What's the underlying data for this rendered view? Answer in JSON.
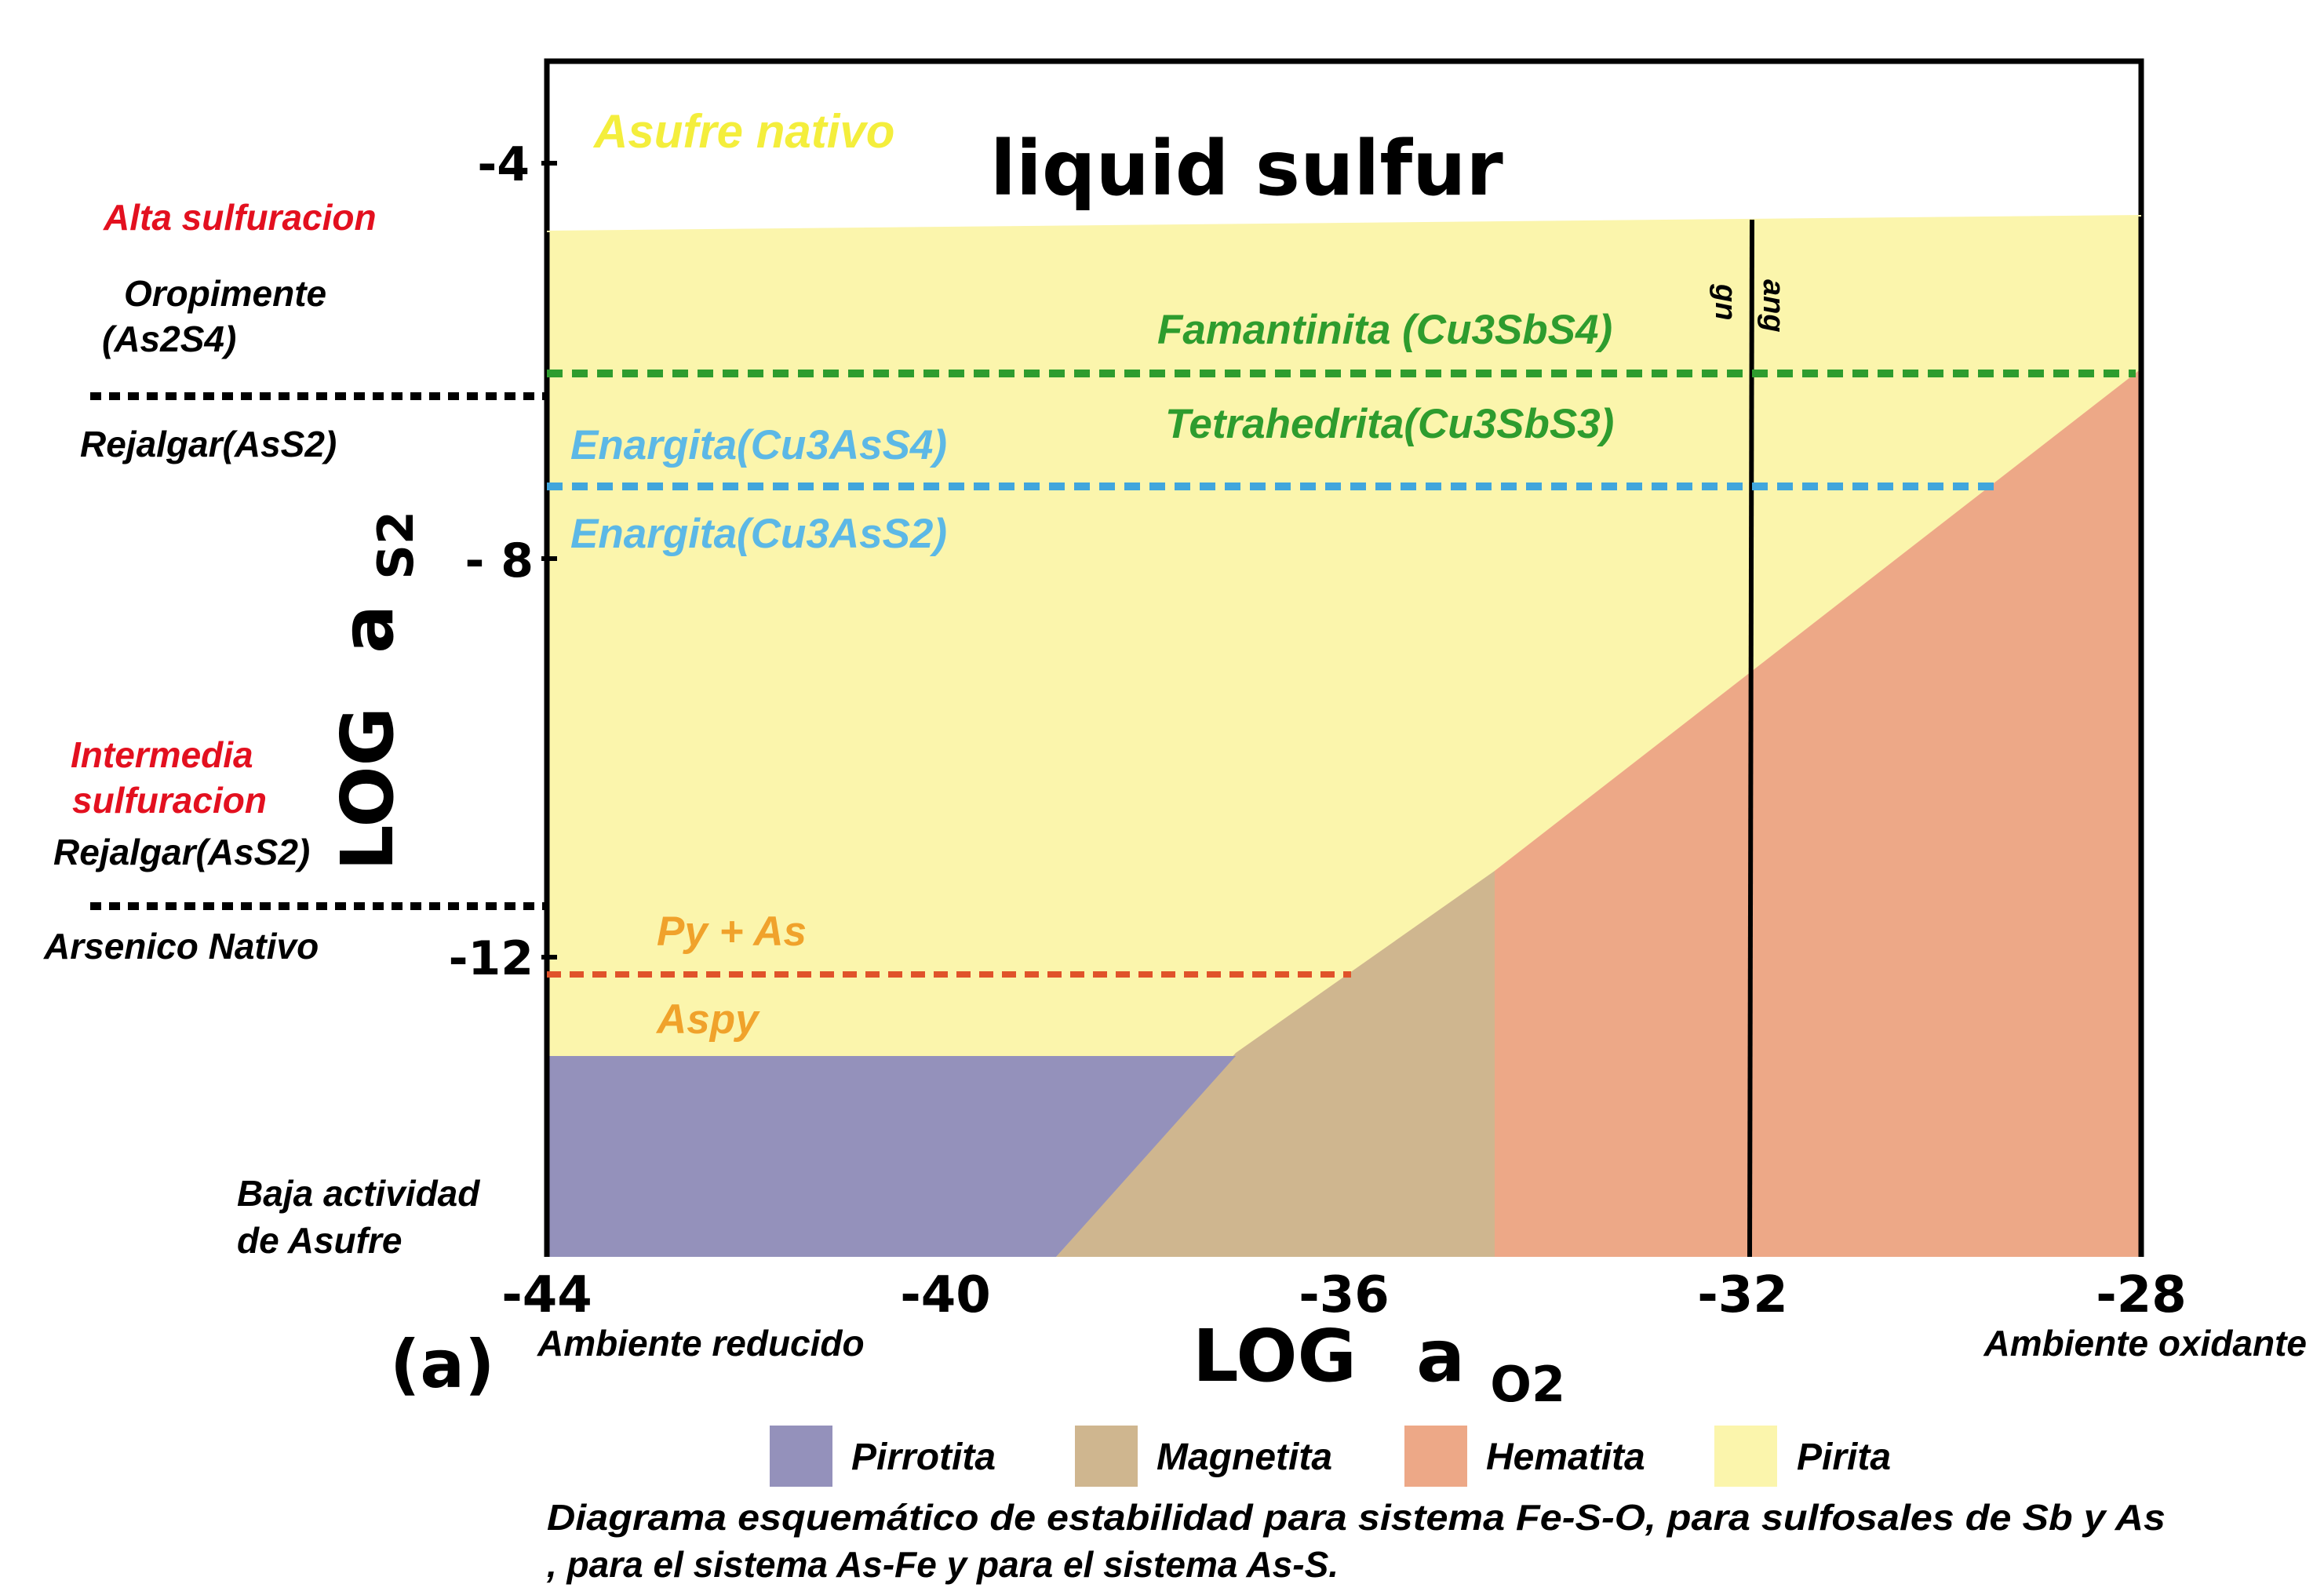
{
  "axes": {
    "x_label_main": "LOG",
    "x_label_var": "a",
    "x_label_sub": "O2",
    "y_label_main": "LOG",
    "y_label_var": "a",
    "y_label_sub": "S2",
    "x_ticks": [
      "-44",
      "-40",
      "-36",
      "-32",
      "-28"
    ],
    "y_ticks": [
      "-4",
      "- 8",
      "-12"
    ],
    "panel_label": "(a)",
    "x_left_note": "Ambiente reducido",
    "x_right_note": "Ambiente oxidante",
    "x_range": [
      -44,
      -28
    ],
    "y_range": [
      -15,
      -3.5
    ]
  },
  "regions": {
    "liquid_sulfur": "liquid  sulfur",
    "asufre_nativo": "Asufre nativo"
  },
  "phase_lines": {
    "famantinita": "Famantinita (Cu3SbS4)",
    "tetrahedrita": "Tetrahedrita(Cu3SbS3)",
    "enargita_1": "Enargita(Cu3AsS4)",
    "enargita_2": "Enargita(Cu3AsS2)",
    "py_as": "Py + As",
    "aspy": "Aspy",
    "gn": "gn",
    "ang": "ang"
  },
  "left_notes": {
    "alta": "Alta sulfuracion",
    "oropimente": "Oropimente",
    "oropimente_formula": "(As2S4)",
    "rejalgar_top": "Rejalgar(AsS2)",
    "intermedia_1": "Intermedia",
    "intermedia_2": "sulfuracion",
    "rejalgar_mid": "Rejalgar(AsS2)",
    "arsenico": "Arsenico Nativo",
    "baja_1": "Baja actividad",
    "baja_2": "de Asufre"
  },
  "legend": {
    "pirrotita": "Pirrotita",
    "magnetita": "Magnetita",
    "hematita": "Hematita",
    "pirita": "Pirita"
  },
  "caption": {
    "line1": "Diagrama esquemático de estabilidad para sistema Fe-S-O, para sulfosales de Sb y As",
    "line2": ", para el sistema As-Fe y para el sistema As-S."
  },
  "colors": {
    "pirita": "#fbf5ac",
    "pirrotita": "#9491bb",
    "magnetita": "#cfb68f",
    "hematita": "#eda887",
    "green": "#2e9c2e",
    "blue": "#41a6dc",
    "orange": "#e0532a",
    "orange_text": "#f0a22b",
    "red_text": "#e3101f",
    "yellow_text": "#f4ee3c",
    "blue_text": "#5cb8e6"
  }
}
